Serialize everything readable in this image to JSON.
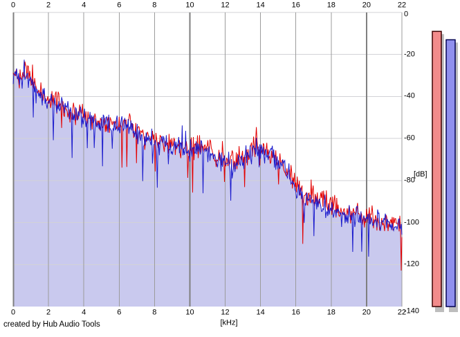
{
  "chart_data": {
    "type": "line",
    "title": "",
    "xlabel": "[kHz]",
    "ylabel": "[dB]",
    "xlim": [
      0,
      22
    ],
    "ylim": [
      -140,
      0
    ],
    "x_ticks": [
      0,
      2,
      4,
      6,
      8,
      10,
      12,
      14,
      16,
      18,
      20,
      22
    ],
    "y_ticks": [
      0,
      -20,
      -40,
      -60,
      -80,
      -100,
      -120,
      -140
    ],
    "grid": true,
    "grid_color_vertical": "#9b9b9b",
    "grid_color_vertical_major": "#7f7f7f",
    "grid_color_horizontal": "#d2d2d6",
    "points_per_series": 562,
    "series": [
      {
        "name": "spectrum-red-channel",
        "color": "#e30000",
        "fill": null,
        "seed": 42,
        "noise_db": 6.5,
        "spike_prob": 0.03,
        "spike_min_db": 6,
        "spike_max_db": 24,
        "up_prob": 0.015,
        "up_db": 5,
        "envelope_x": [
          0,
          0.2,
          0.5,
          0.7,
          1,
          1.5,
          2,
          2.4,
          3,
          4,
          5,
          6,
          6.4,
          7,
          8,
          9,
          10,
          10.8,
          11.5,
          12.3,
          13,
          13.8,
          14.5,
          15.2,
          16,
          16.5,
          17,
          18,
          19,
          20,
          21,
          22
        ],
        "envelope_db": [
          -29,
          -28,
          -30,
          -25,
          -34,
          -38,
          -41,
          -42,
          -46,
          -50,
          -52,
          -54,
          -53,
          -57,
          -61,
          -63,
          -65,
          -64,
          -69,
          -71,
          -69,
          -64,
          -67,
          -71,
          -82,
          -86,
          -88,
          -92,
          -95,
          -97,
          -100,
          -102
        ]
      },
      {
        "name": "spectrum-blue-channel",
        "color": "#1a1acc",
        "fill": "#c9c9ee",
        "seed": 1337,
        "noise_db": 6.5,
        "spike_prob": 0.03,
        "spike_min_db": 6,
        "spike_max_db": 24,
        "up_prob": 0.015,
        "up_db": 5,
        "envelope_x": [
          0,
          0.2,
          0.5,
          0.7,
          1,
          1.5,
          2,
          2.4,
          3,
          4,
          5,
          6,
          6.4,
          7,
          8,
          9,
          10,
          10.8,
          11.5,
          12.3,
          13,
          13.8,
          14.5,
          15.2,
          16,
          16.5,
          17,
          18,
          19,
          20,
          21,
          22
        ],
        "envelope_db": [
          -30,
          -29,
          -31,
          -26,
          -35,
          -39,
          -42,
          -43,
          -47,
          -50,
          -53,
          -55,
          -54,
          -58,
          -62,
          -64,
          -66,
          -65,
          -70,
          -72,
          -70,
          -65,
          -68,
          -72,
          -84,
          -88,
          -90,
          -93,
          -96,
          -98,
          -100,
          -103
        ]
      }
    ]
  },
  "meters": {
    "shadow_color": "#bdbdbd",
    "bars": [
      {
        "name": "meter-bar-red",
        "value_db": -9,
        "fill": "#f28b8b",
        "border": "#3c0000"
      },
      {
        "name": "meter-bar-blue",
        "value_db": -13,
        "fill": "#9090ee",
        "border": "#000050"
      }
    ]
  },
  "footer": {
    "credit": "created by Hub Audio Tools"
  }
}
